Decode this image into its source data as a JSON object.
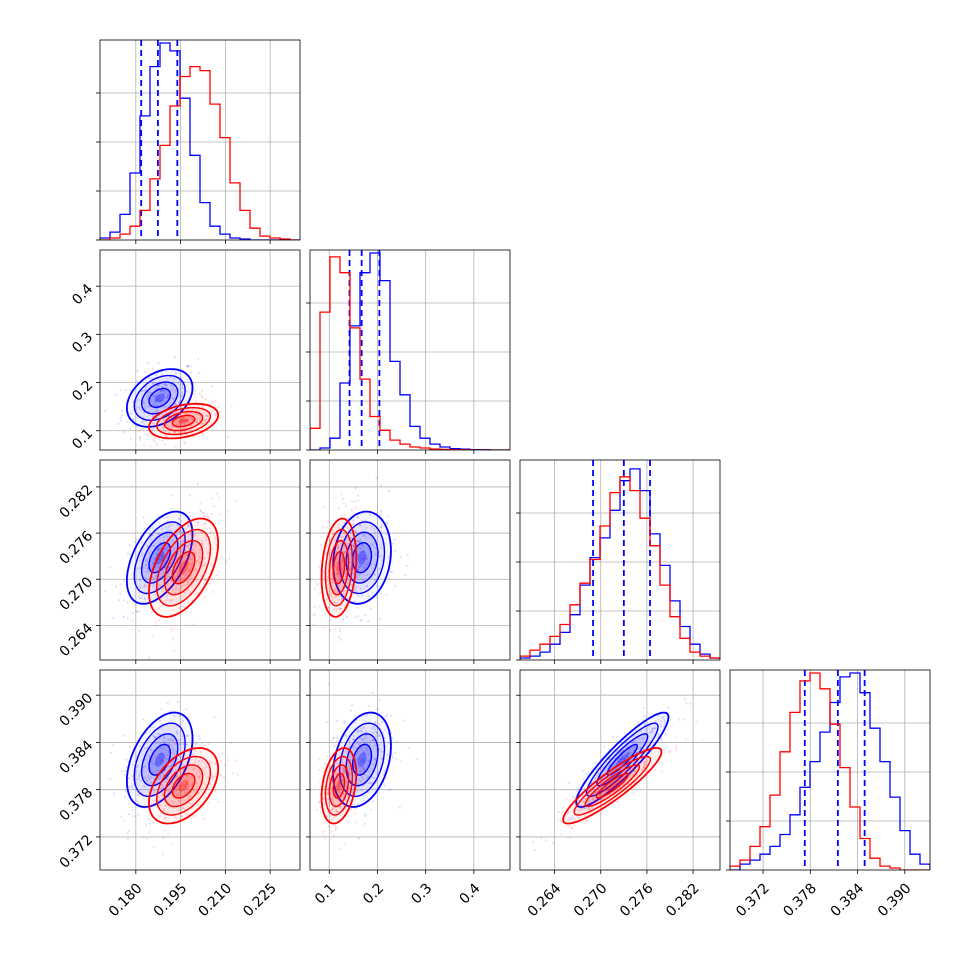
{
  "chart_data": {
    "type": "corner",
    "colors": {
      "blue": "#0000ff",
      "red": "#ff0000"
    },
    "grid": true,
    "parameters": [
      {
        "range": [
          0.168,
          0.235
        ],
        "ticks": [
          0.18,
          0.195,
          0.21,
          0.225
        ],
        "tick_labels": [
          "0.180",
          "0.195",
          "0.210",
          "0.225"
        ]
      },
      {
        "range": [
          0.06,
          0.475
        ],
        "ticks": [
          0.1,
          0.2,
          0.3,
          0.4
        ],
        "tick_labels": [
          "0.1",
          "0.2",
          "0.3",
          "0.4"
        ]
      },
      {
        "range": [
          0.2595,
          0.2855
        ],
        "ticks": [
          0.264,
          0.27,
          0.276,
          0.282
        ],
        "tick_labels": [
          "0.264",
          "0.270",
          "0.276",
          "0.282"
        ]
      },
      {
        "range": [
          0.3678,
          0.3932
        ],
        "ticks": [
          0.372,
          0.378,
          0.384,
          0.39
        ],
        "tick_labels": [
          "0.372",
          "0.378",
          "0.384",
          "0.390"
        ]
      }
    ],
    "series": [
      {
        "name": "blue",
        "color": "#0000ff",
        "quantiles": [
          [
            0.1818,
            0.1874,
            0.1939
          ],
          [
            0.142,
            0.1672,
            0.204
          ],
          [
            0.269,
            0.273,
            0.2764
          ],
          [
            0.3773,
            0.3815,
            0.3849
          ]
        ],
        "means": [
          0.188,
          0.168,
          0.2728,
          0.3818
        ],
        "sds": [
          0.0055,
          0.03,
          0.003,
          0.003
        ],
        "corr": [
          [
            1,
            0.35,
            0.5,
            0.45
          ],
          [
            0.35,
            1,
            0.15,
            0.3
          ],
          [
            0.5,
            0.15,
            1,
            0.9
          ],
          [
            0.45,
            0.3,
            0.9,
            1
          ]
        ],
        "histograms": [
          [
            0.01,
            0.04,
            0.13,
            0.34,
            0.63,
            0.88,
            1.0,
            0.96,
            0.72,
            0.43,
            0.19,
            0.07,
            0.03,
            0.01,
            0.005,
            0.0,
            0.0,
            0.0,
            0.0,
            0.0
          ],
          [
            0.0,
            0.01,
            0.06,
            0.34,
            0.63,
            0.9,
            1.0,
            0.86,
            0.45,
            0.28,
            0.12,
            0.06,
            0.03,
            0.015,
            0.007,
            0.004,
            0.002,
            0.001,
            0.0,
            0.0
          ],
          [
            0.01,
            0.02,
            0.04,
            0.08,
            0.14,
            0.23,
            0.38,
            0.52,
            0.62,
            0.76,
            0.91,
            0.97,
            0.86,
            0.64,
            0.48,
            0.3,
            0.17,
            0.08,
            0.03,
            0.01
          ],
          [
            0.0,
            0.03,
            0.05,
            0.08,
            0.12,
            0.18,
            0.28,
            0.42,
            0.55,
            0.7,
            0.85,
            0.98,
            1.0,
            0.9,
            0.72,
            0.55,
            0.37,
            0.2,
            0.08,
            0.03
          ]
        ]
      },
      {
        "name": "red",
        "color": "#ff0000",
        "means": [
          0.196,
          0.12,
          0.2715,
          0.3785
        ],
        "sds": [
          0.0058,
          0.018,
          0.0032,
          0.0024
        ],
        "corr": [
          [
            1,
            0.35,
            0.5,
            0.45
          ],
          [
            0.35,
            1,
            0.2,
            0.3
          ],
          [
            0.5,
            0.2,
            1,
            0.9
          ],
          [
            0.45,
            0.3,
            0.9,
            1
          ]
        ],
        "histograms": [
          [
            0.0,
            0.01,
            0.03,
            0.07,
            0.15,
            0.31,
            0.48,
            0.68,
            0.83,
            0.88,
            0.86,
            0.69,
            0.52,
            0.29,
            0.15,
            0.06,
            0.02,
            0.01,
            0.005,
            0.0
          ],
          [
            0.11,
            0.7,
            0.98,
            0.9,
            0.62,
            0.36,
            0.17,
            0.1,
            0.05,
            0.03,
            0.015,
            0.01,
            0.005,
            0.003,
            0.002,
            0.001,
            0.0,
            0.0,
            0.0,
            0.0
          ],
          [
            0.02,
            0.05,
            0.08,
            0.12,
            0.18,
            0.28,
            0.39,
            0.51,
            0.68,
            0.85,
            0.93,
            0.86,
            0.72,
            0.58,
            0.38,
            0.22,
            0.11,
            0.04,
            0.02,
            0.01
          ],
          [
            0.02,
            0.05,
            0.12,
            0.22,
            0.38,
            0.6,
            0.8,
            0.96,
            1.0,
            0.92,
            0.74,
            0.52,
            0.32,
            0.16,
            0.06,
            0.02,
            0.01,
            0.0,
            0.0,
            0.0
          ]
        ]
      }
    ]
  }
}
